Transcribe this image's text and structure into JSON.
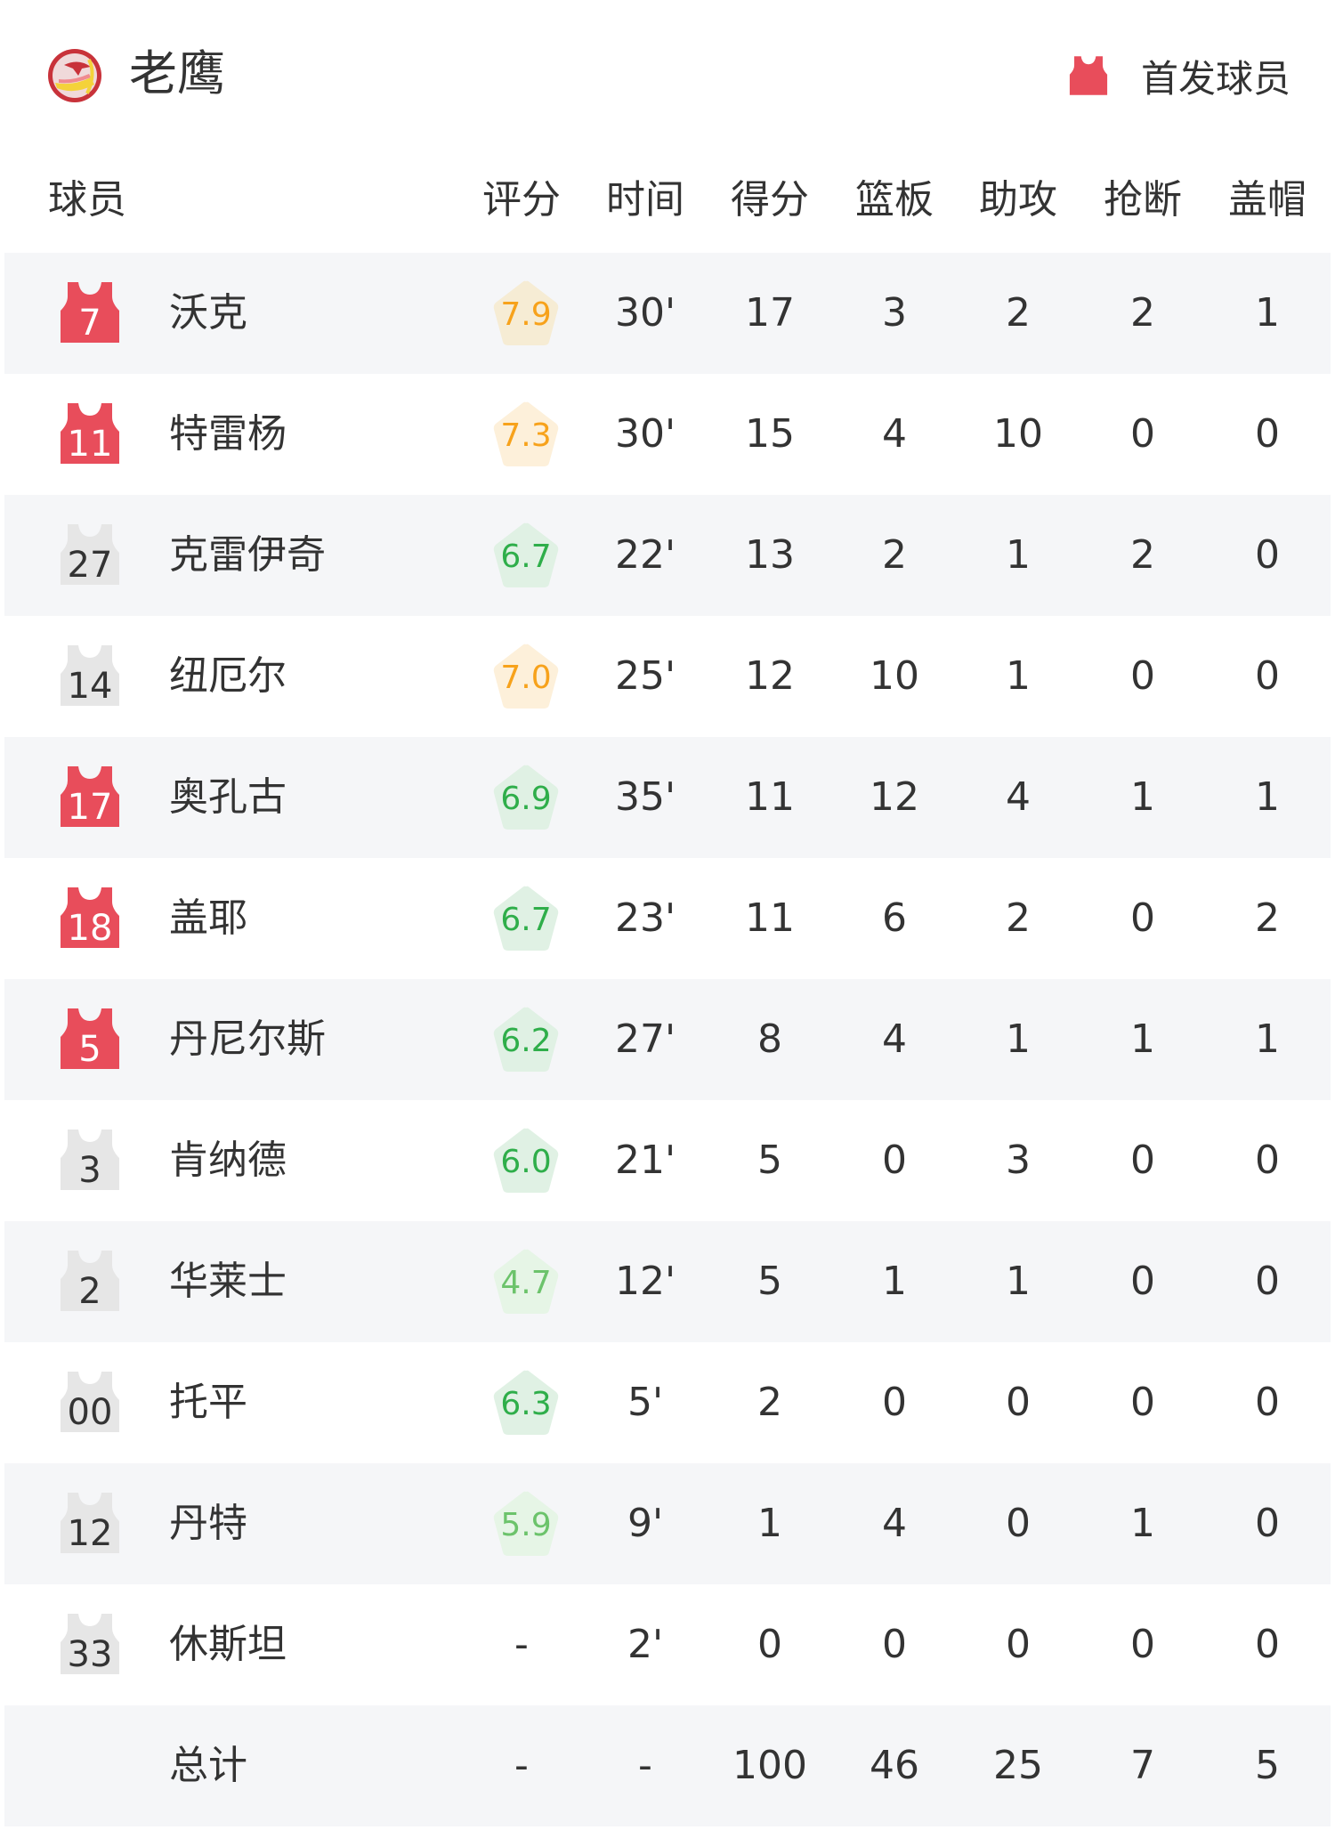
{
  "header": {
    "team_name": "老鹰",
    "legend_label": "首发球员"
  },
  "colors": {
    "starter": "#e84d5b",
    "bench": "#e6e6e6",
    "row_alt": "#f5f6f8",
    "rating_high_text": "#f7a21b",
    "rating_high_bg": "#fdf0da",
    "rating_mid_text": "#2fae4a",
    "rating_mid_bg": "#e0f1e4",
    "rating_low_text": "#6cc36b",
    "rating_low_bg": "#e6f5e6"
  },
  "columns": [
    "球员",
    "评分",
    "时间",
    "得分",
    "篮板",
    "助攻",
    "抢断",
    "盖帽"
  ],
  "players": [
    {
      "number": "7",
      "name": "沃克",
      "starter": true,
      "rating": "7.9",
      "tier": "high",
      "min": "30'",
      "pts": "17",
      "reb": "3",
      "ast": "2",
      "stl": "2",
      "blk": "1"
    },
    {
      "number": "11",
      "name": "特雷杨",
      "starter": true,
      "rating": "7.3",
      "tier": "high",
      "min": "30'",
      "pts": "15",
      "reb": "4",
      "ast": "10",
      "stl": "0",
      "blk": "0"
    },
    {
      "number": "27",
      "name": "克雷伊奇",
      "starter": false,
      "rating": "6.7",
      "tier": "mid",
      "min": "22'",
      "pts": "13",
      "reb": "2",
      "ast": "1",
      "stl": "2",
      "blk": "0"
    },
    {
      "number": "14",
      "name": "纽厄尔",
      "starter": false,
      "rating": "7.0",
      "tier": "high",
      "min": "25'",
      "pts": "12",
      "reb": "10",
      "ast": "1",
      "stl": "0",
      "blk": "0"
    },
    {
      "number": "17",
      "name": "奥孔古",
      "starter": true,
      "rating": "6.9",
      "tier": "mid",
      "min": "35'",
      "pts": "11",
      "reb": "12",
      "ast": "4",
      "stl": "1",
      "blk": "1"
    },
    {
      "number": "18",
      "name": "盖耶",
      "starter": true,
      "rating": "6.7",
      "tier": "mid",
      "min": "23'",
      "pts": "11",
      "reb": "6",
      "ast": "2",
      "stl": "0",
      "blk": "2"
    },
    {
      "number": "5",
      "name": "丹尼尔斯",
      "starter": true,
      "rating": "6.2",
      "tier": "mid",
      "min": "27'",
      "pts": "8",
      "reb": "4",
      "ast": "1",
      "stl": "1",
      "blk": "1"
    },
    {
      "number": "3",
      "name": "肯纳德",
      "starter": false,
      "rating": "6.0",
      "tier": "mid",
      "min": "21'",
      "pts": "5",
      "reb": "0",
      "ast": "3",
      "stl": "0",
      "blk": "0"
    },
    {
      "number": "2",
      "name": "华莱士",
      "starter": false,
      "rating": "4.7",
      "tier": "low",
      "min": "12'",
      "pts": "5",
      "reb": "1",
      "ast": "1",
      "stl": "0",
      "blk": "0"
    },
    {
      "number": "00",
      "name": "托平",
      "starter": false,
      "rating": "6.3",
      "tier": "mid",
      "min": "5'",
      "pts": "2",
      "reb": "0",
      "ast": "0",
      "stl": "0",
      "blk": "0"
    },
    {
      "number": "12",
      "name": "丹特",
      "starter": false,
      "rating": "5.9",
      "tier": "low",
      "min": "9'",
      "pts": "1",
      "reb": "4",
      "ast": "0",
      "stl": "1",
      "blk": "0"
    },
    {
      "number": "33",
      "name": "休斯坦",
      "starter": false,
      "rating": "-",
      "tier": "none",
      "min": "2'",
      "pts": "0",
      "reb": "0",
      "ast": "0",
      "stl": "0",
      "blk": "0"
    }
  ],
  "totals": {
    "label": "总计",
    "rating": "-",
    "min": "-",
    "pts": "100",
    "reb": "46",
    "ast": "25",
    "stl": "7",
    "blk": "5"
  }
}
